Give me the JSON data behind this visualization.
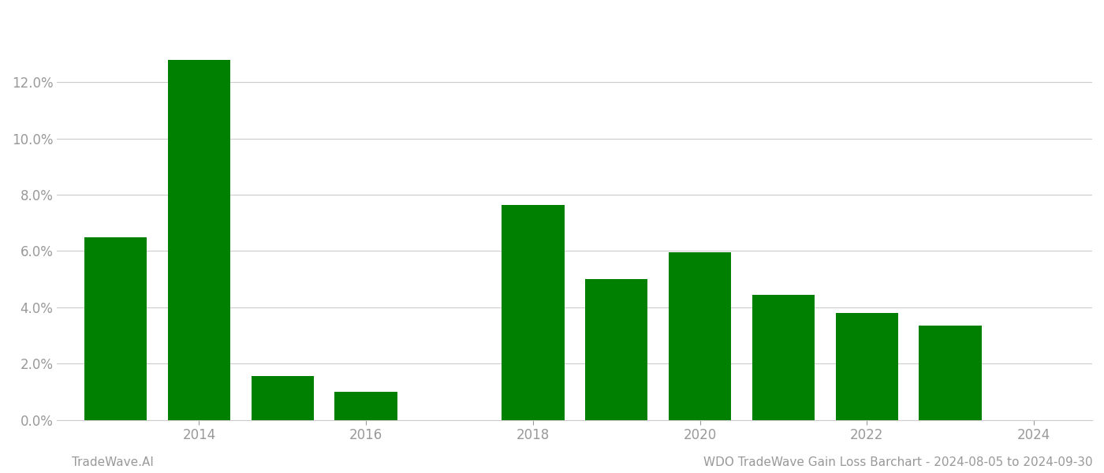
{
  "years": [
    2013,
    2014,
    2015,
    2016,
    2017,
    2018,
    2019,
    2020,
    2021,
    2022,
    2023
  ],
  "values": [
    0.065,
    0.128,
    0.0155,
    0.01,
    0.0,
    0.0765,
    0.05,
    0.0595,
    0.0445,
    0.038,
    0.0335
  ],
  "bar_color": "#008000",
  "background_color": "#ffffff",
  "grid_color": "#cccccc",
  "ylabel_color": "#999999",
  "xlabel_color": "#999999",
  "xtick_labels": [
    2014,
    2016,
    2018,
    2020,
    2022,
    2024
  ],
  "ylim": [
    0.0,
    0.145
  ],
  "yticks": [
    0.0,
    0.02,
    0.04,
    0.06,
    0.08,
    0.1,
    0.12
  ],
  "footer_left": "TradeWave.AI",
  "footer_right": "WDO TradeWave Gain Loss Barchart - 2024-08-05 to 2024-09-30",
  "footer_color": "#999999",
  "footer_fontsize": 11,
  "bar_width": 0.75,
  "xlim_left": 2012.3,
  "xlim_right": 2024.7
}
